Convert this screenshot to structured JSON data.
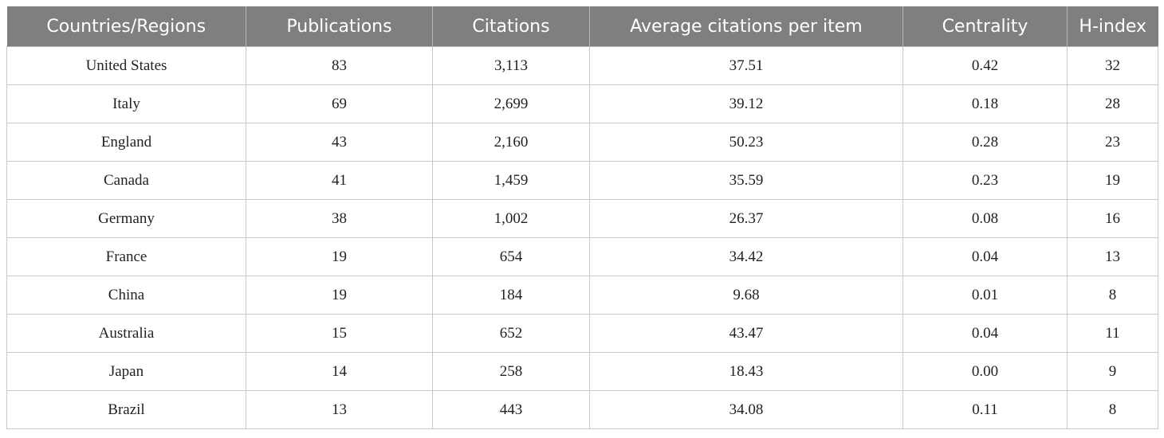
{
  "table": {
    "headers": [
      "Countries/Regions",
      "Publications",
      "Citations",
      "Average citations per item",
      "Centrality",
      "H-index"
    ],
    "rows": [
      [
        "United States",
        "83",
        "3,113",
        "37.51",
        "0.42",
        "32"
      ],
      [
        "Italy",
        "69",
        "2,699",
        "39.12",
        "0.18",
        "28"
      ],
      [
        "England",
        "43",
        "2,160",
        "50.23",
        "0.28",
        "23"
      ],
      [
        "Canada",
        "41",
        "1,459",
        "35.59",
        "0.23",
        "19"
      ],
      [
        "Germany",
        "38",
        "1,002",
        "26.37",
        "0.08",
        "16"
      ],
      [
        "France",
        "19",
        "654",
        "34.42",
        "0.04",
        "13"
      ],
      [
        "China",
        "19",
        "184",
        "9.68",
        "0.01",
        "8"
      ],
      [
        "Australia",
        "15",
        "652",
        "43.47",
        "0.04",
        "11"
      ],
      [
        "Japan",
        "14",
        "258",
        "18.43",
        "0.00",
        "9"
      ],
      [
        "Brazil",
        "13",
        "443",
        "34.08",
        "0.11",
        "8"
      ]
    ]
  },
  "colors": {
    "header_background": "#7f7f7f",
    "header_text": "#ffffff",
    "grid_line": "#c8c8c8"
  }
}
